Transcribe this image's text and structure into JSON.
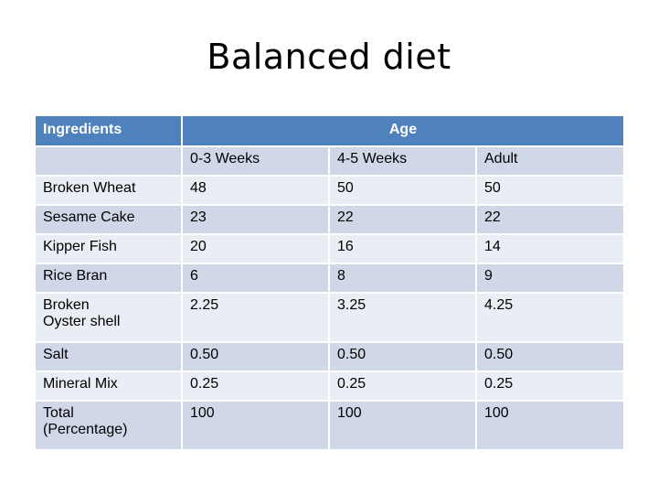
{
  "title": "Balanced diet",
  "table": {
    "header": {
      "ingredients_label": "Ingredients",
      "age_label": "Age"
    },
    "subheader": [
      "",
      "0-3 Weeks",
      "4-5 Weeks",
      "Adult"
    ],
    "rows": [
      [
        "Broken Wheat",
        "48",
        "50",
        "50"
      ],
      [
        "Sesame Cake",
        "23",
        "22",
        "22"
      ],
      [
        "Kipper Fish",
        "20",
        "16",
        "14"
      ],
      [
        "Rice Bran",
        "6",
        "8",
        "9"
      ],
      [
        "Broken\nOyster shell",
        "2.25",
        "3.25",
        "4.25"
      ],
      [
        "Salt",
        "0.50",
        "0.50",
        "0.50"
      ],
      [
        "Mineral Mix",
        "0.25",
        "0.25",
        "0.25"
      ],
      [
        "Total\n(Percentage)",
        "100",
        "100",
        "100"
      ]
    ]
  },
  "colors": {
    "header_bg": "#4f81bd",
    "row_dark": "#d0d8e8",
    "row_light": "#e9edf4"
  }
}
